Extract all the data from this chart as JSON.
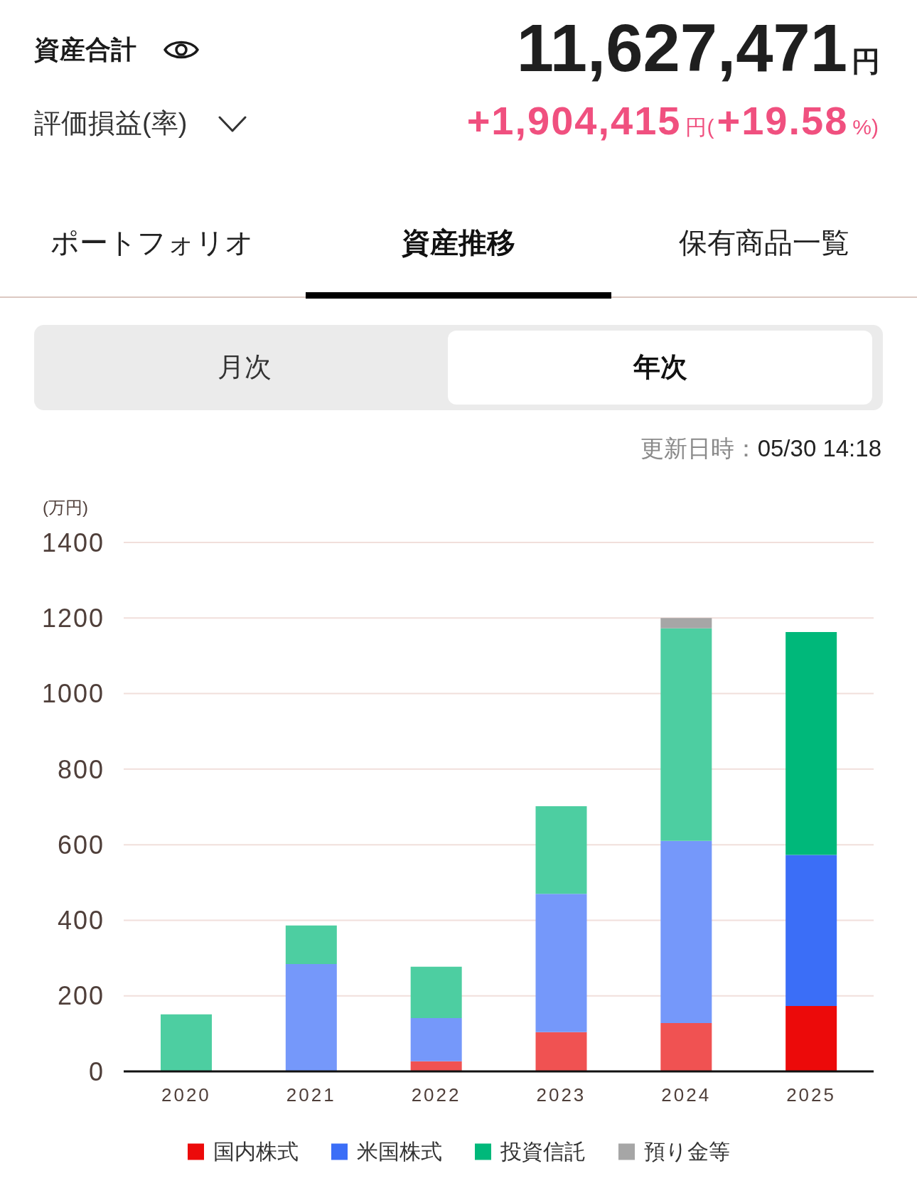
{
  "chart_data": {
    "type": "bar",
    "stacked": true,
    "annotations": [
      "資産合計",
      "11,627,471円",
      "評価損益(率)",
      "+1,904,415円(+19.58%)",
      "ポートフォリオ",
      "資産推移",
      "保有商品一覧",
      "月次",
      "年次",
      "更新日時：05/30 14:18"
    ],
    "ylabel": "(万円)",
    "categories": [
      "2020",
      "2021",
      "2022",
      "2023",
      "2024",
      "2025"
    ],
    "series": [
      {
        "name": "国内株式",
        "color": "#ec0a0a",
        "colors": [
          "#f05252",
          "#f05252",
          "#f05252",
          "#f05252",
          "#f05252",
          "#ec0a0a"
        ],
        "values": [
          null,
          null,
          27,
          104,
          128,
          173
        ]
      },
      {
        "name": "米国株式",
        "color": "#3b6ef7",
        "colors": [
          "#7598fa",
          "#7598fa",
          "#7598fa",
          "#7598fa",
          "#7598fa",
          "#3b6ef7"
        ],
        "values": [
          null,
          284,
          114,
          366,
          482,
          400
        ]
      },
      {
        "name": "投資信託",
        "color": "#00b87a",
        "colors": [
          "#4dcea1",
          "#4dcea1",
          "#4dcea1",
          "#4dcea1",
          "#4dcea1",
          "#00b87a"
        ],
        "values": [
          151,
          102,
          136,
          232,
          563,
          590
        ]
      },
      {
        "name": "預り金等",
        "color": "#a6a6a6",
        "values": [
          null,
          null,
          null,
          null,
          27,
          null
        ]
      }
    ],
    "ylim": [
      0,
      1400
    ],
    "yticks": [
      0,
      200,
      400,
      600,
      800,
      1000,
      1200,
      1400
    ],
    "grid": "y",
    "legend": "bottom"
  }
}
